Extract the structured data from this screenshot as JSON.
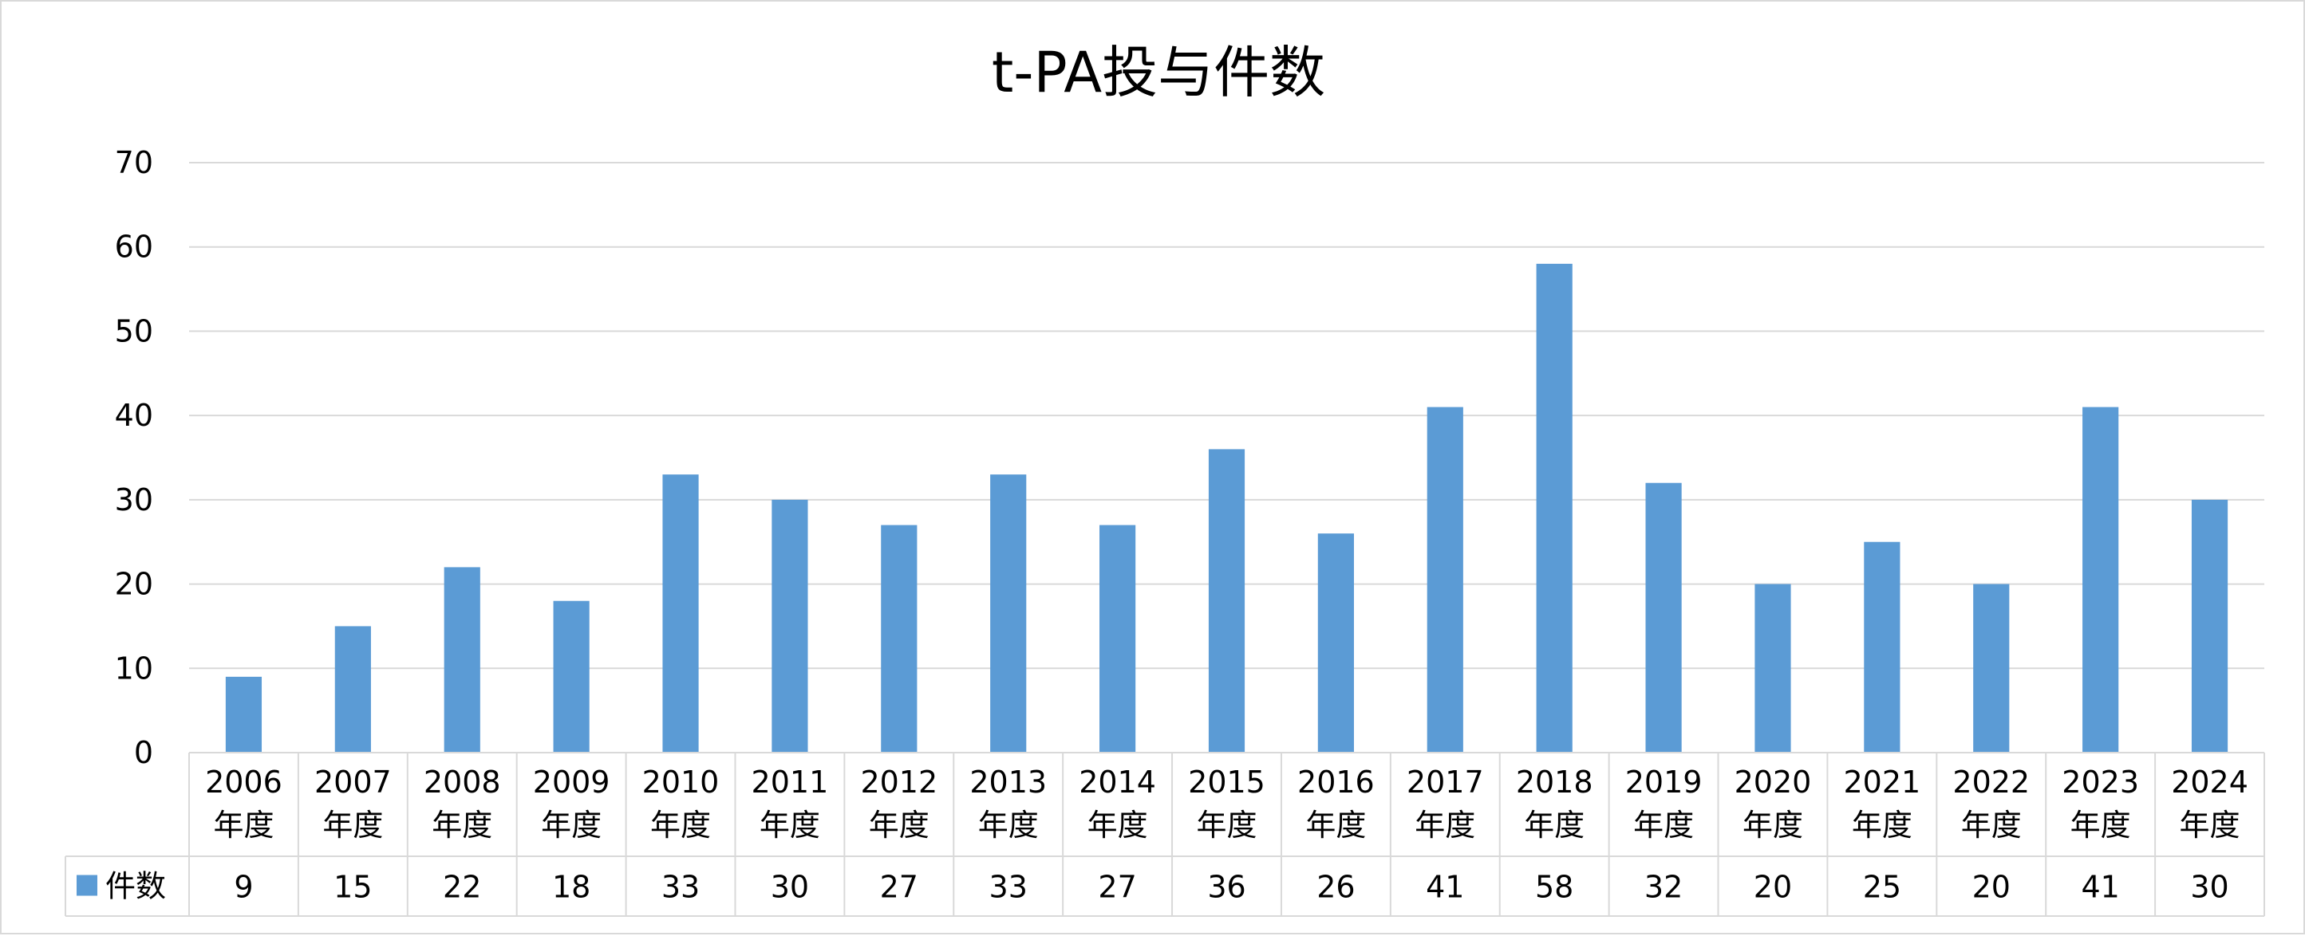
{
  "chart_data": {
    "type": "bar",
    "title": "t-PA投与件数",
    "categories": [
      [
        "2006",
        "年度"
      ],
      [
        "2007",
        "年度"
      ],
      [
        "2008",
        "年度"
      ],
      [
        "2009",
        "年度"
      ],
      [
        "2010",
        "年度"
      ],
      [
        "2011",
        "年度"
      ],
      [
        "2012",
        "年度"
      ],
      [
        "2013",
        "年度"
      ],
      [
        "2014",
        "年度"
      ],
      [
        "2015",
        "年度"
      ],
      [
        "2016",
        "年度"
      ],
      [
        "2017",
        "年度"
      ],
      [
        "2018",
        "年度"
      ],
      [
        "2019",
        "年度"
      ],
      [
        "2020",
        "年度"
      ],
      [
        "2021",
        "年度"
      ],
      [
        "2022",
        "年度"
      ],
      [
        "2023",
        "年度"
      ],
      [
        "2024",
        "年度"
      ]
    ],
    "series": [
      {
        "name": "件数",
        "values": [
          9,
          15,
          22,
          18,
          33,
          30,
          27,
          33,
          27,
          36,
          26,
          41,
          58,
          32,
          20,
          25,
          20,
          41,
          30
        ],
        "color": "#5b9bd5"
      }
    ],
    "y_ticks": [
      "0",
      "10",
      "20",
      "30",
      "40",
      "50",
      "60",
      "70"
    ],
    "ylim": [
      0,
      70
    ],
    "grid": true,
    "legend": "data-table",
    "data_table": true
  },
  "colors": {
    "bar": "#5b9bd5",
    "grid": "#d9d9d9",
    "border": "#d9d9d9",
    "text": "#000000"
  }
}
